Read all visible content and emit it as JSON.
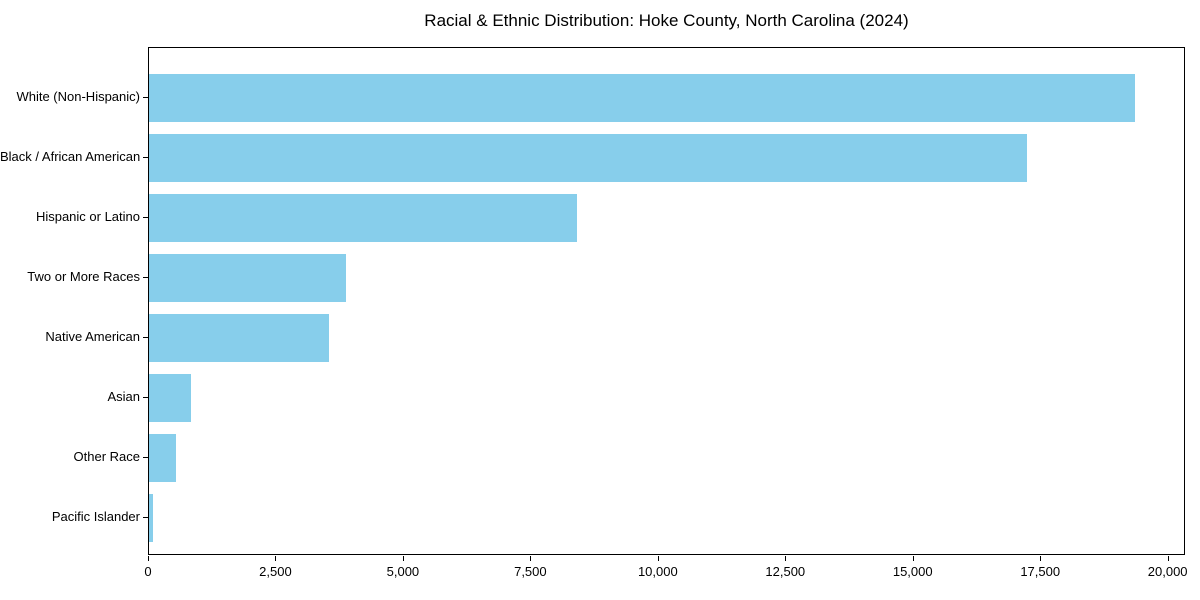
{
  "chart_data": {
    "type": "bar",
    "orientation": "horizontal",
    "title": "Racial & Ethnic Distribution: Hoke County, North Carolina (2024)",
    "xlabel": "",
    "ylabel": "",
    "categories": [
      "White (Non-Hispanic)",
      "Black / African American",
      "Hispanic or Latino",
      "Two or More Races",
      "Native American",
      "Asian",
      "Other Race",
      "Pacific Islander"
    ],
    "values": [
      19370,
      17250,
      8420,
      3870,
      3530,
      825,
      530,
      80
    ],
    "xlim": [
      0,
      20340
    ],
    "x_ticks": [
      0,
      2500,
      5000,
      7500,
      10000,
      12500,
      15000,
      17500,
      20000
    ],
    "x_tick_labels": [
      "0",
      "2,500",
      "5,000",
      "7,500",
      "10,000",
      "12,500",
      "15,000",
      "17,500",
      "20,000"
    ],
    "bar_color": "#87CEEB",
    "axis_color": "#000000",
    "background_color": "#ffffff",
    "grid": false,
    "legend": null
  }
}
